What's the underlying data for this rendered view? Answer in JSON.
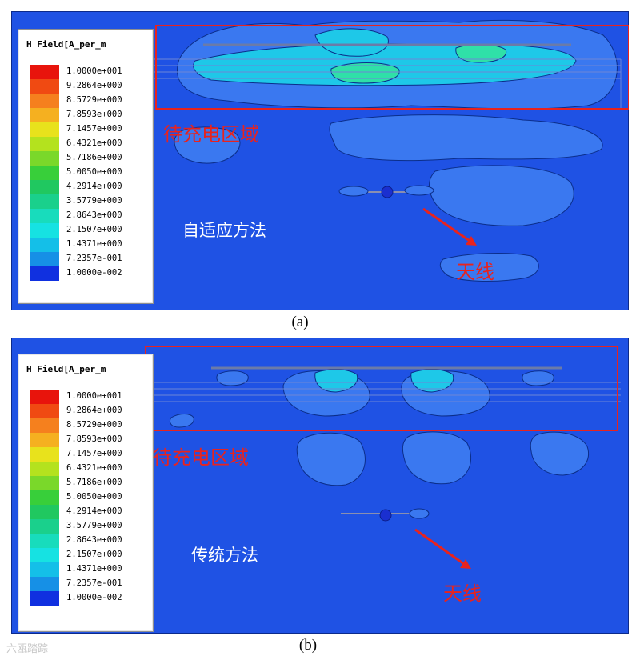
{
  "legend": {
    "title": "H Field[A_per_m",
    "entries": [
      {
        "label": "1.0000e+001",
        "color": "#e8140c"
      },
      {
        "label": "9.2864e+000",
        "color": "#f04a12"
      },
      {
        "label": "8.5729e+000",
        "color": "#f5801e"
      },
      {
        "label": "7.8593e+000",
        "color": "#f5b020"
      },
      {
        "label": "7.1457e+000",
        "color": "#e8e21c"
      },
      {
        "label": "6.4321e+000",
        "color": "#b4e21e"
      },
      {
        "label": "5.7186e+000",
        "color": "#7ad82a"
      },
      {
        "label": "5.0050e+000",
        "color": "#38cf3a"
      },
      {
        "label": "4.2914e+000",
        "color": "#20c860"
      },
      {
        "label": "3.5779e+000",
        "color": "#1ad08c"
      },
      {
        "label": "2.8643e+000",
        "color": "#18dcbc"
      },
      {
        "label": "2.1507e+000",
        "color": "#16e2e2"
      },
      {
        "label": "1.4371e+000",
        "color": "#14bfe8"
      },
      {
        "label": "7.2357e-001",
        "color": "#1690e6"
      },
      {
        "label": "1.0000e-002",
        "color": "#1030e0"
      }
    ]
  },
  "panels": [
    {
      "region_label": "待充电区域",
      "method_label": "自适应方法",
      "antenna_label": "天线",
      "caption": "(a)"
    },
    {
      "region_label": "待充电区域",
      "method_label": "传统方法",
      "antenna_label": "天线",
      "caption": "(b)"
    }
  ],
  "colors": {
    "background_field": "#1f52e4",
    "contour_low": "#3a78f0",
    "contour_mid": "#1ec8e8",
    "contour_high": "#2fe0a8",
    "annotation_red": "#e8231e"
  },
  "watermark": "六瓯踏踪"
}
